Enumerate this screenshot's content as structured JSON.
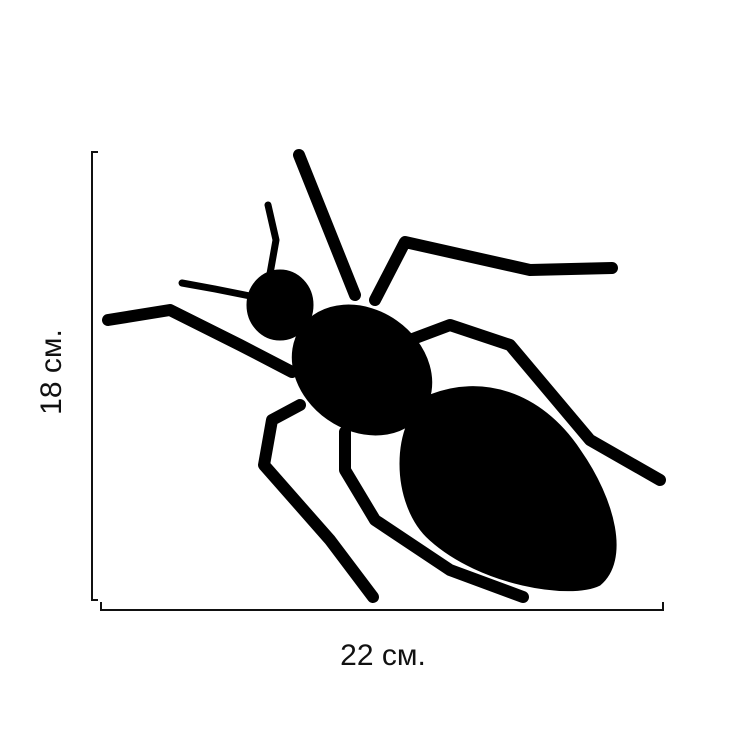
{
  "dimensions": {
    "height_label": "18 см.",
    "width_label": "22 см."
  },
  "illustration": {
    "subject": "ant-silhouette",
    "fill_color": "#000000",
    "line_color": "#111111",
    "background": "#ffffff"
  }
}
